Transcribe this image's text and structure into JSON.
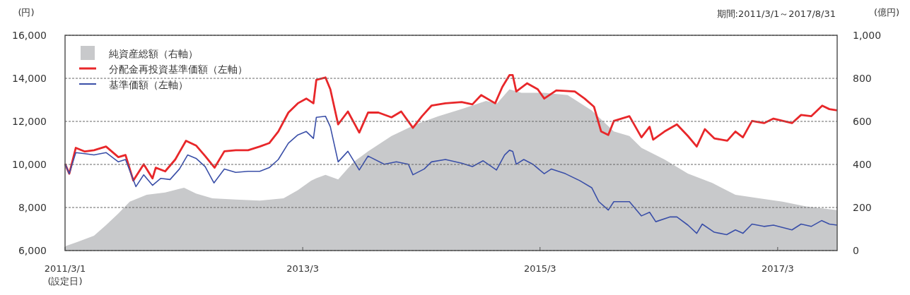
{
  "chart_data": {
    "type": "line",
    "subtitle": "期間:2011/3/1～2017/8/31",
    "ylabel": "(円)",
    "y2label": "(億円)",
    "annotations": [
      "(設定日)"
    ],
    "xlim": [
      "2011-03-01",
      "2017-08-31"
    ],
    "xticks": [
      {
        "value": "2011-03-01",
        "label": "2011/3/1"
      },
      {
        "value": "2013-03-01",
        "label": "2013/3"
      },
      {
        "value": "2015-03-01",
        "label": "2015/3"
      },
      {
        "value": "2017-03-01",
        "label": "2017/3"
      }
    ],
    "ylim": [
      6000,
      16000
    ],
    "yticks": [
      {
        "value": 6000,
        "label": "6,000"
      },
      {
        "value": 8000,
        "label": "8,000"
      },
      {
        "value": 10000,
        "label": "10,000"
      },
      {
        "value": 12000,
        "label": "12,000"
      },
      {
        "value": 14000,
        "label": "14,000"
      },
      {
        "value": 16000,
        "label": "16,000"
      }
    ],
    "y2lim": [
      0,
      1000
    ],
    "y2ticks": [
      0,
      200,
      400,
      600,
      800,
      {
        "value": 1000,
        "label": "1,000"
      }
    ],
    "grid": "y",
    "legend": "top left",
    "series": [
      {
        "name": "純資産総額（右軸）",
        "type": "area",
        "axis": "y2",
        "color": "#c8c9cb",
        "x": [
          "2011-03-01",
          "2011-04-10",
          "2011-05-29",
          "2011-07-05",
          "2011-08-12",
          "2011-09-16",
          "2011-11-07",
          "2012-01-03",
          "2012-03-01",
          "2012-04-07",
          "2012-05-27",
          "2012-08-07",
          "2012-10-20",
          "2013-01-01",
          "2013-02-14",
          "2013-03-27",
          "2013-04-12",
          "2013-05-10",
          "2013-06-18",
          "2013-08-05",
          "2013-09-18",
          "2013-11-29",
          "2014-02-12",
          "2014-04-22",
          "2014-07-03",
          "2014-09-16",
          "2014-10-20",
          "2014-11-27",
          "2015-01-03",
          "2015-03-14",
          "2015-05-25",
          "2015-08-07",
          "2015-10-14",
          "2015-12-01",
          "2016-01-07",
          "2016-03-18",
          "2016-05-29",
          "2016-08-12",
          "2016-10-22",
          "2017-01-03",
          "2017-03-16",
          "2017-05-27",
          "2017-08-31"
        ],
        "values": [
          20,
          41,
          69,
          118,
          172,
          227,
          259,
          270,
          292,
          265,
          243,
          237,
          232,
          243,
          280,
          325,
          336,
          352,
          330,
          412,
          461,
          532,
          586,
          624,
          657,
          695,
          684,
          749,
          733,
          733,
          722,
          651,
          553,
          532,
          477,
          423,
          357,
          314,
          259,
          243,
          227,
          205,
          188
        ]
      },
      {
        "name": "分配金再投資基準価額（左軸）",
        "color": "#e8272a",
        "x": [
          "2011-03-01",
          "2011-03-14",
          "2011-04-03",
          "2011-05-01",
          "2011-05-29",
          "2011-07-05",
          "2011-08-12",
          "2011-09-03",
          "2011-09-27",
          "2011-10-29",
          "2011-11-25",
          "2011-12-05",
          "2012-01-03",
          "2012-02-03",
          "2012-03-07",
          "2012-04-07",
          "2012-05-05",
          "2012-06-03",
          "2012-07-03",
          "2012-08-07",
          "2012-09-14",
          "2012-10-20",
          "2012-11-18",
          "2012-12-16",
          "2013-01-16",
          "2013-02-14",
          "2013-03-12",
          "2013-04-03",
          "2013-04-12",
          "2013-05-10",
          "2013-05-25",
          "2013-06-18",
          "2013-07-18",
          "2013-08-22",
          "2013-09-18",
          "2013-10-20",
          "2013-11-29",
          "2013-12-29",
          "2014-02-03",
          "2014-03-03",
          "2014-04-01",
          "2014-05-14",
          "2014-07-03",
          "2014-08-05",
          "2014-09-01",
          "2014-10-14",
          "2014-11-05",
          "2014-11-27",
          "2014-12-07",
          "2014-12-18",
          "2015-01-20",
          "2015-02-22",
          "2015-03-14",
          "2015-04-20",
          "2015-06-16",
          "2015-07-16",
          "2015-08-14",
          "2015-09-05",
          "2015-09-27",
          "2015-10-14",
          "2015-12-01",
          "2016-01-07",
          "2016-02-01",
          "2016-02-12",
          "2016-03-18",
          "2016-04-25",
          "2016-05-29",
          "2016-06-25",
          "2016-07-20",
          "2016-08-18",
          "2016-09-27",
          "2016-10-22",
          "2016-11-14",
          "2016-12-12",
          "2017-01-18",
          "2017-02-16",
          "2017-04-14",
          "2017-05-12",
          "2017-06-12",
          "2017-07-16",
          "2017-08-07",
          "2017-08-31"
        ],
        "values": [
          10030,
          9570,
          10770,
          10600,
          10660,
          10830,
          10340,
          10440,
          9250,
          10010,
          9350,
          9850,
          9680,
          10230,
          11100,
          10880,
          10390,
          9850,
          10610,
          10660,
          10660,
          10830,
          10990,
          11530,
          12410,
          12840,
          13060,
          12840,
          13930,
          14040,
          13490,
          11860,
          12460,
          11480,
          12410,
          12410,
          12190,
          12460,
          11700,
          12240,
          12730,
          12840,
          12900,
          12790,
          13220,
          12840,
          13600,
          14150,
          14150,
          13390,
          13770,
          13490,
          13060,
          13440,
          13390,
          13060,
          12680,
          11530,
          11370,
          12020,
          12240,
          11260,
          11750,
          11150,
          11530,
          11860,
          11320,
          10830,
          11640,
          11210,
          11100,
          11530,
          11260,
          12020,
          11920,
          12130,
          11920,
          12300,
          12240,
          12730,
          12570,
          12510
        ]
      },
      {
        "name": "基準価額（左軸）",
        "color": "#3a4fa8",
        "x": [
          "2011-03-01",
          "2011-03-14",
          "2011-04-03",
          "2011-05-01",
          "2011-05-29",
          "2011-07-05",
          "2011-08-12",
          "2011-09-03",
          "2011-10-05",
          "2011-10-29",
          "2011-11-25",
          "2011-12-20",
          "2012-01-18",
          "2012-02-16",
          "2012-03-12",
          "2012-04-07",
          "2012-05-05",
          "2012-06-01",
          "2012-07-03",
          "2012-08-07",
          "2012-09-14",
          "2012-10-20",
          "2012-11-18",
          "2012-12-16",
          "2013-01-16",
          "2013-02-14",
          "2013-03-12",
          "2013-04-03",
          "2013-04-12",
          "2013-05-10",
          "2013-05-25",
          "2013-06-18",
          "2013-07-18",
          "2013-08-22",
          "2013-09-18",
          "2013-11-07",
          "2013-12-14",
          "2014-01-20",
          "2014-02-03",
          "2014-03-10",
          "2014-04-01",
          "2014-05-14",
          "2014-07-03",
          "2014-08-05",
          "2014-09-07",
          "2014-10-18",
          "2014-11-12",
          "2014-11-27",
          "2014-12-07",
          "2014-12-18",
          "2015-01-10",
          "2015-02-07",
          "2015-03-14",
          "2015-04-05",
          "2015-05-18",
          "2015-07-01",
          "2015-08-07",
          "2015-08-29",
          "2015-09-27",
          "2015-10-14",
          "2015-12-01",
          "2016-01-07",
          "2016-02-01",
          "2016-02-20",
          "2016-04-03",
          "2016-04-25",
          "2016-05-29",
          "2016-06-25",
          "2016-07-12",
          "2016-08-18",
          "2016-09-25",
          "2016-10-22",
          "2016-11-14",
          "2016-12-12",
          "2017-01-18",
          "2017-02-16",
          "2017-04-14",
          "2017-05-12",
          "2017-06-12",
          "2017-07-14",
          "2017-08-07",
          "2017-08-31"
        ],
        "values": [
          10030,
          9570,
          10550,
          10500,
          10440,
          10550,
          10120,
          10230,
          8970,
          9520,
          9030,
          9350,
          9300,
          9790,
          10440,
          10280,
          9900,
          9140,
          9790,
          9630,
          9680,
          9680,
          9850,
          10230,
          10990,
          11370,
          11530,
          11210,
          12190,
          12240,
          11750,
          10120,
          10610,
          9740,
          10390,
          10010,
          10120,
          10010,
          9520,
          9790,
          10120,
          10230,
          10060,
          9900,
          10170,
          9740,
          10440,
          10660,
          10610,
          10010,
          10230,
          10010,
          9570,
          9790,
          9570,
          9250,
          8920,
          8270,
          7880,
          8270,
          8270,
          7610,
          7780,
          7340,
          7560,
          7560,
          7180,
          6800,
          7230,
          6850,
          6740,
          6960,
          6800,
          7230,
          7120,
          7180,
          6960,
          7230,
          7120,
          7390,
          7230,
          7180
        ]
      }
    ]
  }
}
